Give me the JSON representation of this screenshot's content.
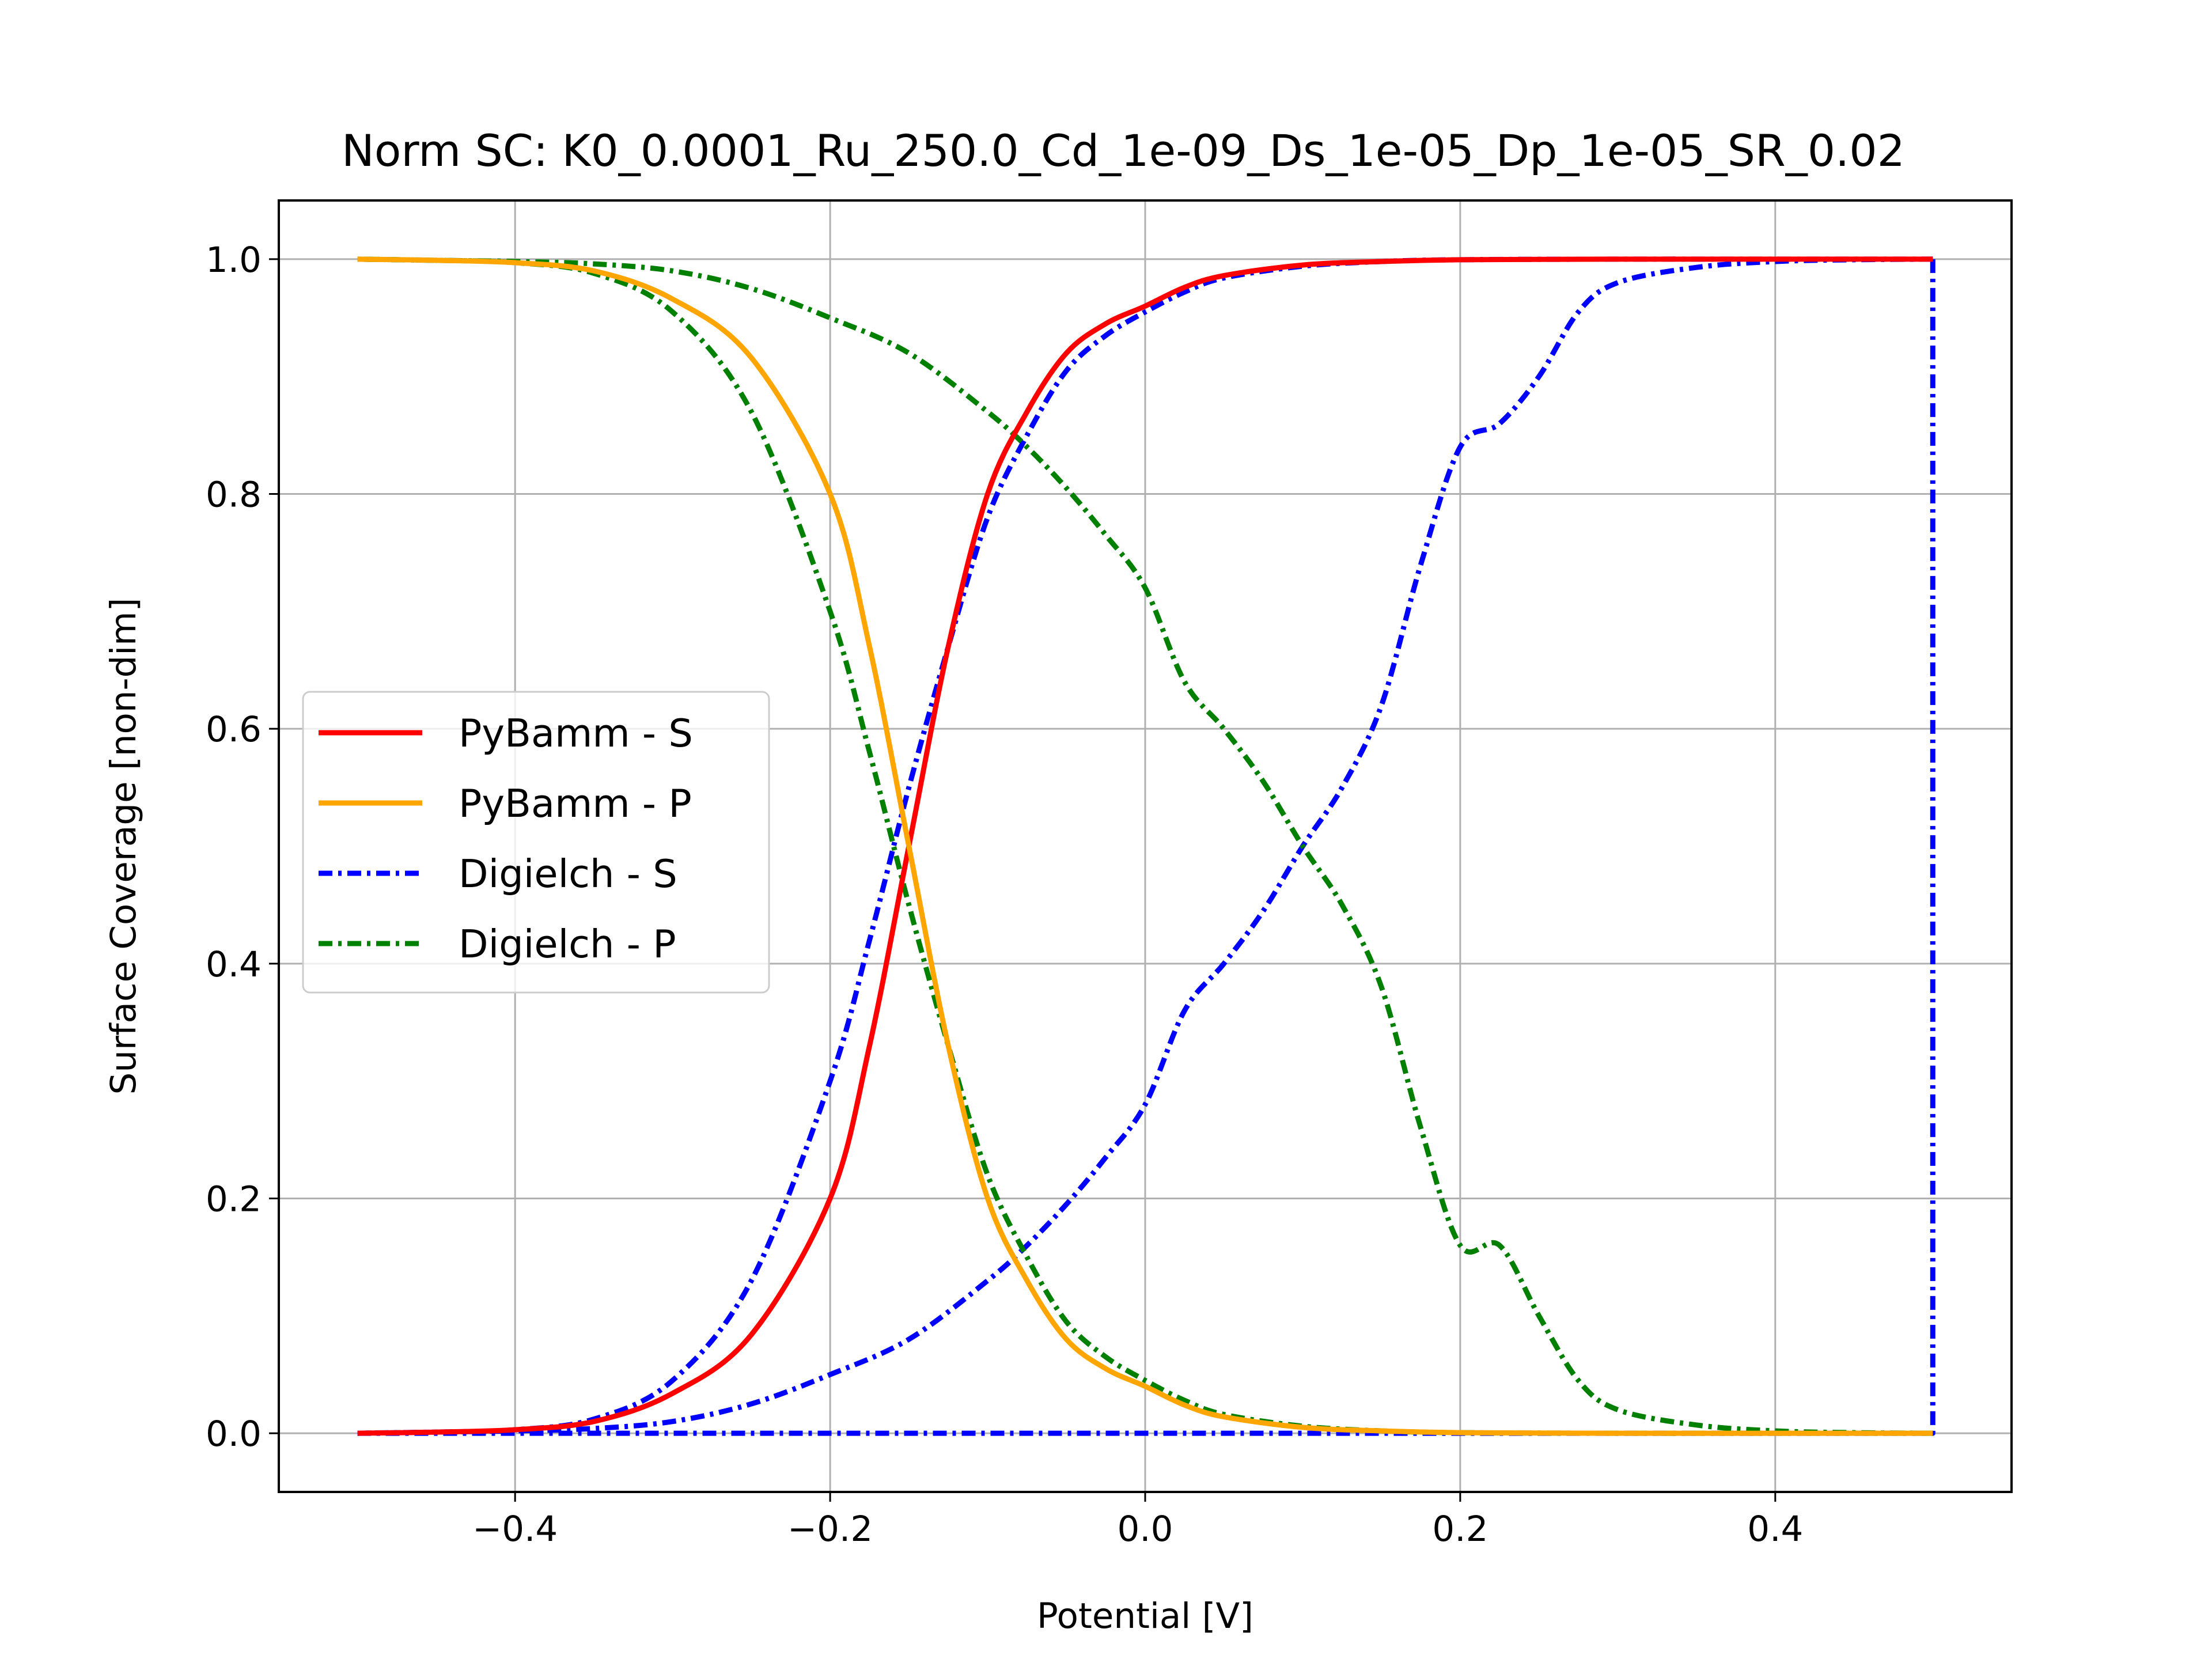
{
  "chart_data": {
    "type": "line",
    "title": "Norm SC: K0_0.0001_Ru_250.0_Cd_1e-09_Ds_1e-05_Dp_1e-05_SR_0.02",
    "xlabel": "Potential [V]",
    "ylabel": "Surface Coverage [non-dim]",
    "xlim": [
      -0.55,
      0.55
    ],
    "ylim": [
      -0.05,
      1.05
    ],
    "xticks": [
      -0.4,
      -0.2,
      0.0,
      0.2,
      0.4
    ],
    "xtick_labels": [
      "−0.4",
      "−0.2",
      "0.0",
      "0.2",
      "0.4"
    ],
    "yticks": [
      0.0,
      0.2,
      0.4,
      0.6,
      0.8,
      1.0
    ],
    "ytick_labels": [
      "0.0",
      "0.2",
      "0.4",
      "0.6",
      "0.8",
      "1.0"
    ],
    "grid": true,
    "legend_position": "center-left",
    "series": [
      {
        "name": "PyBamm - S",
        "color": "#ff0000",
        "style": "solid",
        "x": [
          -0.5,
          -0.45,
          -0.4,
          -0.35,
          -0.3,
          -0.25,
          -0.2,
          -0.175,
          -0.15,
          -0.125,
          -0.1,
          -0.075,
          -0.05,
          -0.025,
          0.0,
          0.025,
          0.05,
          0.1,
          0.15,
          0.2,
          0.3,
          0.4,
          0.5
        ],
        "y": [
          0.0,
          0.001,
          0.003,
          0.01,
          0.034,
          0.084,
          0.2,
          0.33,
          0.5,
          0.67,
          0.8,
          0.87,
          0.92,
          0.945,
          0.96,
          0.976,
          0.986,
          0.995,
          0.998,
          0.9995,
          1.0,
          1.0,
          1.0
        ]
      },
      {
        "name": "PyBamm - P",
        "color": "#ffa500",
        "style": "solid",
        "x": [
          -0.5,
          -0.45,
          -0.4,
          -0.35,
          -0.3,
          -0.25,
          -0.2,
          -0.175,
          -0.15,
          -0.125,
          -0.1,
          -0.075,
          -0.05,
          -0.025,
          0.0,
          0.025,
          0.05,
          0.1,
          0.15,
          0.2,
          0.3,
          0.4,
          0.5
        ],
        "y": [
          1.0,
          0.999,
          0.997,
          0.99,
          0.966,
          0.916,
          0.8,
          0.67,
          0.5,
          0.33,
          0.2,
          0.13,
          0.08,
          0.055,
          0.04,
          0.024,
          0.014,
          0.005,
          0.002,
          0.0005,
          0.0,
          0.0,
          0.0
        ]
      },
      {
        "name": "Digielch - S",
        "color": "#0000ff",
        "style": "dashdot",
        "x": [
          -0.5,
          -0.45,
          -0.4,
          -0.35,
          -0.3,
          -0.25,
          -0.2,
          -0.175,
          -0.15,
          -0.125,
          -0.1,
          -0.075,
          -0.05,
          -0.025,
          0.0,
          0.025,
          0.05,
          0.1,
          0.15,
          0.2,
          0.3,
          0.4,
          0.5,
          0.5,
          0.45,
          0.4,
          0.35,
          0.3,
          0.275,
          0.25,
          0.225,
          0.2,
          0.175,
          0.15,
          0.125,
          0.1,
          0.075,
          0.05,
          0.025,
          0.0,
          -0.025,
          -0.05,
          -0.075,
          -0.1,
          -0.15,
          -0.2,
          -0.25,
          -0.3,
          -0.35,
          -0.4,
          -0.45,
          -0.5
        ],
        "y": [
          0.0,
          0.001,
          0.003,
          0.012,
          0.045,
          0.13,
          0.3,
          0.42,
          0.55,
          0.67,
          0.78,
          0.85,
          0.905,
          0.935,
          0.955,
          0.972,
          0.984,
          0.994,
          0.998,
          0.9995,
          1.0,
          1.0,
          1.0,
          0.0,
          0.0,
          0.0,
          0.0,
          0.0,
          0.0,
          0.0,
          0.0,
          0.0,
          0.0,
          0.0,
          0.0,
          0.0,
          0.0,
          0.0,
          0.0,
          0.0,
          0.0,
          0.0,
          0.0,
          0.0,
          0.0,
          0.0,
          0.0,
          0.0,
          0.0,
          0.0,
          0.0,
          0.0
        ],
        "return_sweep_x": [
          0.5,
          0.45,
          0.4,
          0.35,
          0.3,
          0.275,
          0.25,
          0.225,
          0.2,
          0.175,
          0.15,
          0.125,
          0.1,
          0.075,
          0.05,
          0.025,
          0.0,
          -0.025,
          -0.05,
          -0.075,
          -0.1,
          -0.15,
          -0.2,
          -0.25,
          -0.3,
          -0.35,
          -0.4,
          -0.45,
          -0.5
        ],
        "return_sweep_y": [
          1.0,
          0.9995,
          0.998,
          0.993,
          0.98,
          0.955,
          0.9,
          0.86,
          0.84,
          0.74,
          0.62,
          0.55,
          0.5,
          0.445,
          0.4,
          0.36,
          0.28,
          0.235,
          0.195,
          0.16,
          0.13,
          0.08,
          0.05,
          0.025,
          0.01,
          0.004,
          0.002,
          0.001,
          0.0
        ]
      },
      {
        "name": "Digielch - P",
        "color": "#008000",
        "style": "dashdot",
        "x": [
          -0.5,
          -0.45,
          -0.4,
          -0.35,
          -0.3,
          -0.25,
          -0.2,
          -0.175,
          -0.15,
          -0.125,
          -0.1,
          -0.075,
          -0.05,
          -0.025,
          0.0,
          0.025,
          0.05,
          0.1,
          0.15,
          0.2,
          0.3,
          0.4,
          0.5
        ],
        "y": [
          1.0,
          0.999,
          0.997,
          0.988,
          0.955,
          0.87,
          0.7,
          0.58,
          0.45,
          0.33,
          0.22,
          0.15,
          0.095,
          0.065,
          0.045,
          0.028,
          0.016,
          0.006,
          0.002,
          0.0005,
          0.0,
          0.0,
          0.0
        ],
        "return_sweep_x": [
          0.5,
          0.45,
          0.4,
          0.35,
          0.3,
          0.275,
          0.25,
          0.225,
          0.2,
          0.175,
          0.15,
          0.125,
          0.1,
          0.075,
          0.05,
          0.025,
          0.0,
          -0.025,
          -0.05,
          -0.075,
          -0.1,
          -0.15,
          -0.2,
          -0.25,
          -0.3,
          -0.35,
          -0.4,
          -0.45,
          -0.5
        ],
        "return_sweep_y": [
          0.0,
          0.0005,
          0.002,
          0.007,
          0.02,
          0.045,
          0.1,
          0.16,
          0.16,
          0.26,
          0.38,
          0.45,
          0.5,
          0.555,
          0.6,
          0.64,
          0.72,
          0.765,
          0.805,
          0.84,
          0.87,
          0.92,
          0.95,
          0.975,
          0.99,
          0.996,
          0.998,
          0.999,
          1.0
        ]
      }
    ]
  }
}
